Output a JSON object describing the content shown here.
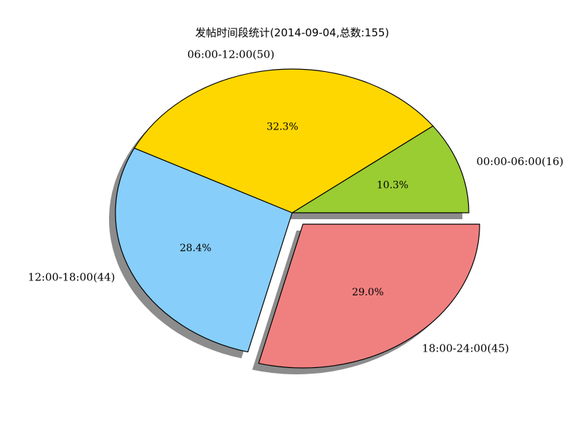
{
  "chart_data": {
    "type": "pie",
    "title": "发帖时间段统计(2014-09-04,总数:155)",
    "start_angle_deg": 0,
    "counterclock": true,
    "shadow": true,
    "slices": [
      {
        "label": "00:00-06:00(16)",
        "value": 16,
        "percent": "10.3%",
        "color": "#9acd32",
        "explode": 0
      },
      {
        "label": "06:00-12:00(50)",
        "value": 50,
        "percent": "32.3%",
        "color": "#ffd700",
        "explode": 0
      },
      {
        "label": "12:00-18:00(44)",
        "value": 44,
        "percent": "28.4%",
        "color": "#87cefa",
        "explode": 0
      },
      {
        "label": "18:00-24:00(45)",
        "value": 45,
        "percent": "29.0%",
        "color": "#f08080",
        "explode": 0.1
      }
    ]
  }
}
